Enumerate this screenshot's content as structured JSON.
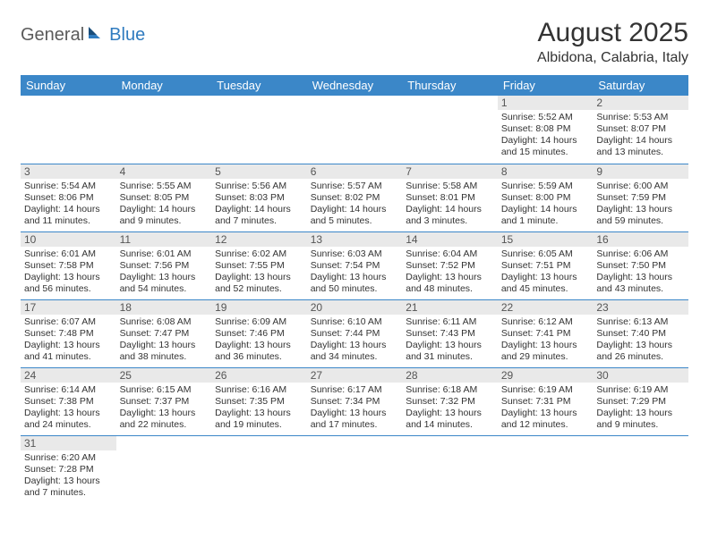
{
  "logo": {
    "general": "General",
    "blue": "Blue"
  },
  "title": "August 2025",
  "location": "Albidona, Calabria, Italy",
  "colors": {
    "header_bg": "#3b87c8",
    "header_text": "#ffffff",
    "daynum_bg": "#e9e9e9",
    "border": "#3b87c8",
    "logo_blue": "#2f7bbf",
    "logo_dark": "#1a4d7a"
  },
  "dayNames": [
    "Sunday",
    "Monday",
    "Tuesday",
    "Wednesday",
    "Thursday",
    "Friday",
    "Saturday"
  ],
  "weeks": [
    [
      null,
      null,
      null,
      null,
      null,
      {
        "n": "1",
        "lines": [
          "Sunrise: 5:52 AM",
          "Sunset: 8:08 PM",
          "Daylight: 14 hours",
          "and 15 minutes."
        ]
      },
      {
        "n": "2",
        "lines": [
          "Sunrise: 5:53 AM",
          "Sunset: 8:07 PM",
          "Daylight: 14 hours",
          "and 13 minutes."
        ]
      }
    ],
    [
      {
        "n": "3",
        "lines": [
          "Sunrise: 5:54 AM",
          "Sunset: 8:06 PM",
          "Daylight: 14 hours",
          "and 11 minutes."
        ]
      },
      {
        "n": "4",
        "lines": [
          "Sunrise: 5:55 AM",
          "Sunset: 8:05 PM",
          "Daylight: 14 hours",
          "and 9 minutes."
        ]
      },
      {
        "n": "5",
        "lines": [
          "Sunrise: 5:56 AM",
          "Sunset: 8:03 PM",
          "Daylight: 14 hours",
          "and 7 minutes."
        ]
      },
      {
        "n": "6",
        "lines": [
          "Sunrise: 5:57 AM",
          "Sunset: 8:02 PM",
          "Daylight: 14 hours",
          "and 5 minutes."
        ]
      },
      {
        "n": "7",
        "lines": [
          "Sunrise: 5:58 AM",
          "Sunset: 8:01 PM",
          "Daylight: 14 hours",
          "and 3 minutes."
        ]
      },
      {
        "n": "8",
        "lines": [
          "Sunrise: 5:59 AM",
          "Sunset: 8:00 PM",
          "Daylight: 14 hours",
          "and 1 minute."
        ]
      },
      {
        "n": "9",
        "lines": [
          "Sunrise: 6:00 AM",
          "Sunset: 7:59 PM",
          "Daylight: 13 hours",
          "and 59 minutes."
        ]
      }
    ],
    [
      {
        "n": "10",
        "lines": [
          "Sunrise: 6:01 AM",
          "Sunset: 7:58 PM",
          "Daylight: 13 hours",
          "and 56 minutes."
        ]
      },
      {
        "n": "11",
        "lines": [
          "Sunrise: 6:01 AM",
          "Sunset: 7:56 PM",
          "Daylight: 13 hours",
          "and 54 minutes."
        ]
      },
      {
        "n": "12",
        "lines": [
          "Sunrise: 6:02 AM",
          "Sunset: 7:55 PM",
          "Daylight: 13 hours",
          "and 52 minutes."
        ]
      },
      {
        "n": "13",
        "lines": [
          "Sunrise: 6:03 AM",
          "Sunset: 7:54 PM",
          "Daylight: 13 hours",
          "and 50 minutes."
        ]
      },
      {
        "n": "14",
        "lines": [
          "Sunrise: 6:04 AM",
          "Sunset: 7:52 PM",
          "Daylight: 13 hours",
          "and 48 minutes."
        ]
      },
      {
        "n": "15",
        "lines": [
          "Sunrise: 6:05 AM",
          "Sunset: 7:51 PM",
          "Daylight: 13 hours",
          "and 45 minutes."
        ]
      },
      {
        "n": "16",
        "lines": [
          "Sunrise: 6:06 AM",
          "Sunset: 7:50 PM",
          "Daylight: 13 hours",
          "and 43 minutes."
        ]
      }
    ],
    [
      {
        "n": "17",
        "lines": [
          "Sunrise: 6:07 AM",
          "Sunset: 7:48 PM",
          "Daylight: 13 hours",
          "and 41 minutes."
        ]
      },
      {
        "n": "18",
        "lines": [
          "Sunrise: 6:08 AM",
          "Sunset: 7:47 PM",
          "Daylight: 13 hours",
          "and 38 minutes."
        ]
      },
      {
        "n": "19",
        "lines": [
          "Sunrise: 6:09 AM",
          "Sunset: 7:46 PM",
          "Daylight: 13 hours",
          "and 36 minutes."
        ]
      },
      {
        "n": "20",
        "lines": [
          "Sunrise: 6:10 AM",
          "Sunset: 7:44 PM",
          "Daylight: 13 hours",
          "and 34 minutes."
        ]
      },
      {
        "n": "21",
        "lines": [
          "Sunrise: 6:11 AM",
          "Sunset: 7:43 PM",
          "Daylight: 13 hours",
          "and 31 minutes."
        ]
      },
      {
        "n": "22",
        "lines": [
          "Sunrise: 6:12 AM",
          "Sunset: 7:41 PM",
          "Daylight: 13 hours",
          "and 29 minutes."
        ]
      },
      {
        "n": "23",
        "lines": [
          "Sunrise: 6:13 AM",
          "Sunset: 7:40 PM",
          "Daylight: 13 hours",
          "and 26 minutes."
        ]
      }
    ],
    [
      {
        "n": "24",
        "lines": [
          "Sunrise: 6:14 AM",
          "Sunset: 7:38 PM",
          "Daylight: 13 hours",
          "and 24 minutes."
        ]
      },
      {
        "n": "25",
        "lines": [
          "Sunrise: 6:15 AM",
          "Sunset: 7:37 PM",
          "Daylight: 13 hours",
          "and 22 minutes."
        ]
      },
      {
        "n": "26",
        "lines": [
          "Sunrise: 6:16 AM",
          "Sunset: 7:35 PM",
          "Daylight: 13 hours",
          "and 19 minutes."
        ]
      },
      {
        "n": "27",
        "lines": [
          "Sunrise: 6:17 AM",
          "Sunset: 7:34 PM",
          "Daylight: 13 hours",
          "and 17 minutes."
        ]
      },
      {
        "n": "28",
        "lines": [
          "Sunrise: 6:18 AM",
          "Sunset: 7:32 PM",
          "Daylight: 13 hours",
          "and 14 minutes."
        ]
      },
      {
        "n": "29",
        "lines": [
          "Sunrise: 6:19 AM",
          "Sunset: 7:31 PM",
          "Daylight: 13 hours",
          "and 12 minutes."
        ]
      },
      {
        "n": "30",
        "lines": [
          "Sunrise: 6:19 AM",
          "Sunset: 7:29 PM",
          "Daylight: 13 hours",
          "and 9 minutes."
        ]
      }
    ],
    [
      {
        "n": "31",
        "lines": [
          "Sunrise: 6:20 AM",
          "Sunset: 7:28 PM",
          "Daylight: 13 hours",
          "and 7 minutes."
        ]
      },
      null,
      null,
      null,
      null,
      null,
      null
    ]
  ]
}
